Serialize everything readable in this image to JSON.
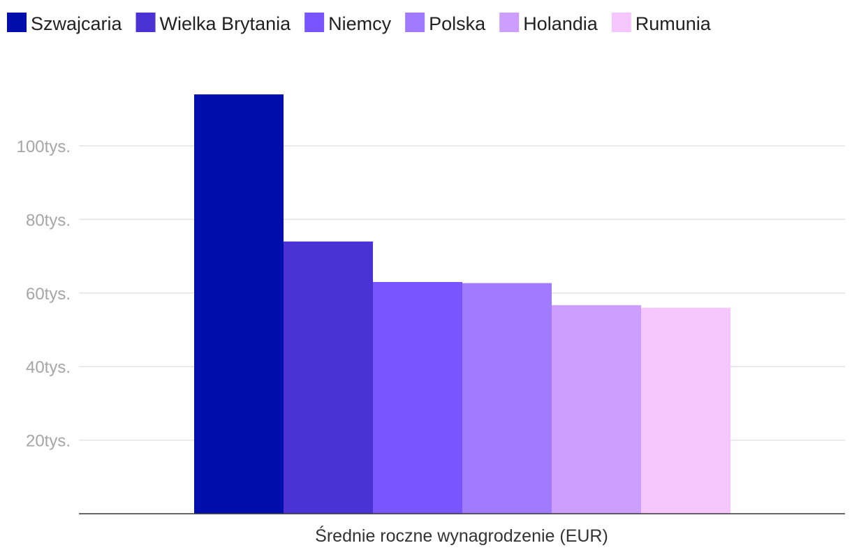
{
  "chart_data": {
    "type": "bar",
    "categories": [
      "Średnie roczne wynagrodzenie (EUR)"
    ],
    "series": [
      {
        "name": "Szwajcaria",
        "values": [
          114000
        ],
        "color": "#000fac"
      },
      {
        "name": "Wielka Brytania",
        "values": [
          74000
        ],
        "color": "#4b32d4"
      },
      {
        "name": "Niemcy",
        "values": [
          63000
        ],
        "color": "#7855ff"
      },
      {
        "name": "Polska",
        "values": [
          62700
        ],
        "color": "#a07aff"
      },
      {
        "name": "Holandia",
        "values": [
          56700
        ],
        "color": "#cc9eff"
      },
      {
        "name": "Rumunia",
        "values": [
          56000
        ],
        "color": "#f5c6ff"
      }
    ],
    "xlabel": "Średnie roczne wynagrodzenie (EUR)",
    "ylim": [
      0,
      120000
    ],
    "yticks": [
      {
        "value": 20000,
        "label": "20tys."
      },
      {
        "value": 40000,
        "label": "40tys."
      },
      {
        "value": 60000,
        "label": "60tys."
      },
      {
        "value": 80000,
        "label": "80tys."
      },
      {
        "value": 100000,
        "label": "100tys."
      }
    ],
    "grid": true,
    "legend": "top-left"
  }
}
